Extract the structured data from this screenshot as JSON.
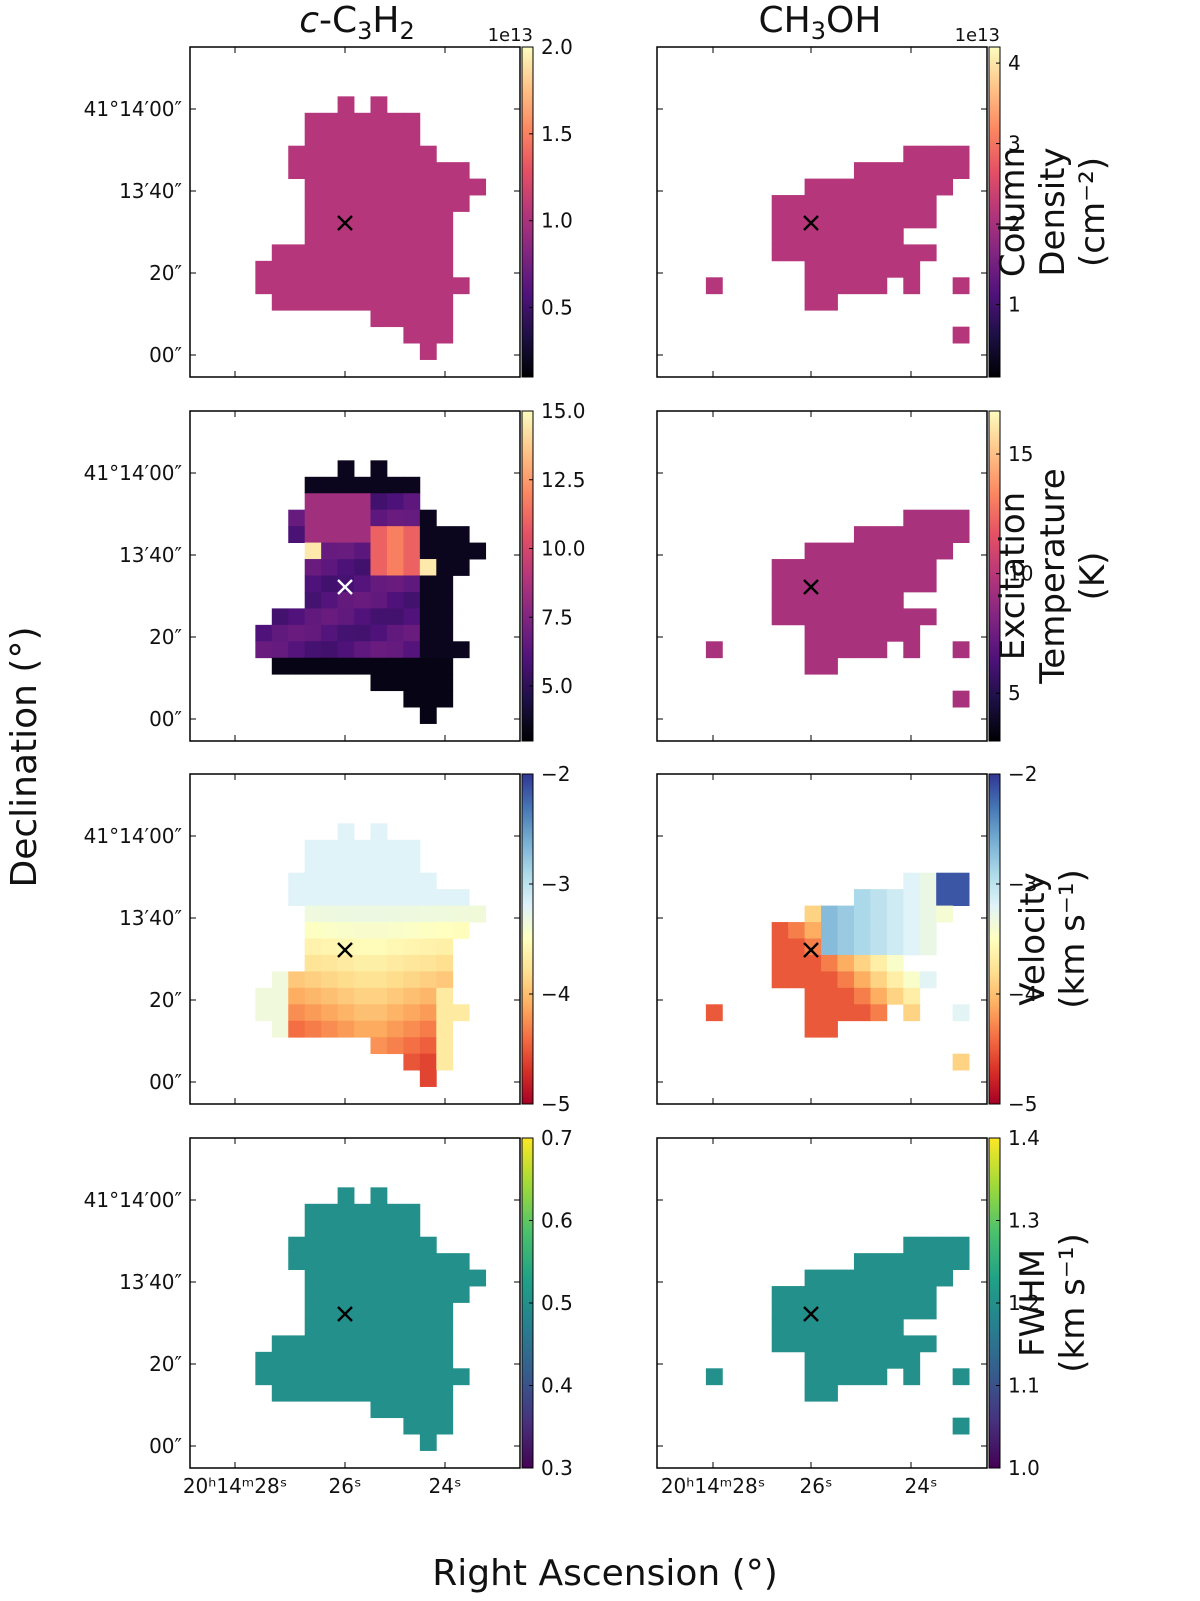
{
  "chart_data": {
    "type": "heatmap",
    "axes": {
      "xlabel": "Right Ascension (°)",
      "ylabel": "Declination (°)",
      "x_ticks": [
        {
          "label": "20ʰ14ᵐ28ˢ"
        },
        {
          "label": "26ˢ"
        },
        {
          "label": "24ˢ"
        }
      ],
      "y_ticks": [
        {
          "label": "41°14′00″"
        },
        {
          "label": "13′40″"
        },
        {
          "label": "20″"
        },
        {
          "label": "00″"
        }
      ]
    },
    "columns": [
      {
        "molecule": "c-C3H2",
        "title_parts": {
          "c": "c",
          "base": "-C",
          "n": "3",
          "h": "H",
          "h_sub": "2"
        }
      },
      {
        "molecule": "CH3OH",
        "title_parts": {
          "c": "",
          "base": "CH",
          "n": "3",
          "h": "OH",
          "h_sub": ""
        }
      }
    ],
    "rows": [
      {
        "quantity": "Column Density",
        "colorbar_label_lines": [
          "Column",
          "Density",
          "(cm⁻²)"
        ],
        "colormap": "magma",
        "panels": [
          {
            "cbar_exponent": "1e13",
            "vmin": 0.1,
            "vmax": 2.0,
            "cbar_ticks": [
              "2.0",
              "1.5",
              "1.0",
              "0.5"
            ],
            "cbar_tick_values": [
              2.0,
              1.5,
              1.0,
              0.5
            ],
            "value_note": "uniform fill near 1.05e13"
          },
          {
            "cbar_exponent": "1e13",
            "vmin": 0.1,
            "vmax": 4.2,
            "cbar_ticks": [
              "4",
              "3",
              "2",
              "1"
            ],
            "cbar_tick_values": [
              4,
              3,
              2,
              1
            ],
            "value_note": "uniform fill near 2.15e13"
          }
        ]
      },
      {
        "quantity": "Excitation Temperature",
        "colorbar_label_lines": [
          "Excitation",
          "Temperature",
          "(K)"
        ],
        "colormap": "magma",
        "panels": [
          {
            "cbar_exponent": "",
            "vmin": 3.0,
            "vmax": 15.0,
            "cbar_ticks": [
              "15.0",
              "12.5",
              "10.0",
              "7.5",
              "5.0"
            ],
            "cbar_tick_values": [
              15.0,
              12.5,
              10.0,
              7.5,
              5.0
            ],
            "value_note": "3–15 K, warm 10–13 K knot north-east of centre"
          },
          {
            "cbar_exponent": "",
            "vmin": 3.0,
            "vmax": 16.8,
            "cbar_ticks": [
              "15",
              "10",
              "5"
            ],
            "cbar_tick_values": [
              15,
              10,
              5
            ],
            "value_note": "uniform fill near 9.5 K"
          }
        ]
      },
      {
        "quantity": "Velocity",
        "colorbar_label_lines": [
          "Velocity",
          "(km s⁻¹)"
        ],
        "colormap": "RdYlBu",
        "panels": [
          {
            "cbar_exponent": "",
            "vmin": -5.0,
            "vmax": -2.0,
            "cbar_ticks": [
              "−2",
              "−3",
              "−4",
              "−5"
            ],
            "cbar_tick_values": [
              -2,
              -3,
              -4,
              -5
            ],
            "value_note": "about -3.2 in the north, about -4.4 in the south"
          },
          {
            "cbar_exponent": "",
            "vmin": -5.0,
            "vmax": -2.0,
            "cbar_ticks": [
              "−2",
              "−3",
              "−4",
              "−5"
            ],
            "cbar_tick_values": [
              -2,
              -3,
              -4,
              -5
            ],
            "value_note": "about -2.4 to -2.9 in the north-east, about -4.2 in the south-west"
          }
        ]
      },
      {
        "quantity": "FWHM",
        "colorbar_label_lines": [
          "FWHM",
          "(km s⁻¹)"
        ],
        "colormap": "viridis",
        "panels": [
          {
            "cbar_exponent": "",
            "vmin": 0.3,
            "vmax": 0.7,
            "cbar_ticks": [
              "0.7",
              "0.6",
              "0.5",
              "0.4",
              "0.3"
            ],
            "cbar_tick_values": [
              0.7,
              0.6,
              0.5,
              0.4,
              0.3
            ],
            "value_note": "uniform fill near 0.5"
          },
          {
            "cbar_exponent": "",
            "vmin": 1.0,
            "vmax": 1.4,
            "cbar_ticks": [
              "1.4",
              "1.3",
              "1.2",
              "1.1",
              "1.0"
            ],
            "cbar_tick_values": [
              1.4,
              1.3,
              1.2,
              1.1,
              1.0
            ],
            "value_note": "uniform fill near 1.2"
          }
        ]
      }
    ],
    "grid": {
      "n_cols": 20,
      "n_rows": 20
    },
    "masks": {
      "c-C3H2": [
        "....................",
        "....................",
        "....................",
        "........#.#.........",
        "......#######.......",
        "......#######.......",
        ".....#########......",
        ".....###########....",
        "......###########...",
        "......##########....",
        "......#########.....",
        "......#########.....",
        "....###########.....",
        "...############.....",
        "...#############....",
        "....###########.....",
        "..........#####.....",
        "............###.....",
        ".............#......",
        "...................."
      ],
      "CH3OH": [
        "....................",
        "....................",
        "....................",
        "....................",
        "....................",
        "....................",
        "..............####..",
        "...........#######..",
        "........#########...",
        "......##########....",
        "......##########....",
        "......########......",
        "......##########....",
        "........#######.....",
        "..#.....#####.#..#..",
        "........##..........",
        "....................",
        ".................#..",
        "....................",
        "...................."
      ]
    },
    "peak_marker": {
      "symbol": "x",
      "note": "reference position near 20h14m26s, 41°13′33″"
    }
  },
  "colors": {
    "magma": [
      "#000004",
      "#1c1044",
      "#4f127b",
      "#812581",
      "#b5367a",
      "#e55064",
      "#fb8761",
      "#fec287",
      "#fcfdbf"
    ],
    "viridis": [
      "#440154",
      "#46327e",
      "#365c8d",
      "#277f8e",
      "#1fa187",
      "#4ac16d",
      "#a0da39",
      "#fde725"
    ],
    "rdylbu": [
      "#313695",
      "#4575b4",
      "#74add1",
      "#abd9e9",
      "#e0f3f8",
      "#ffffbf",
      "#fee090",
      "#fdae61",
      "#f46d43",
      "#d73027",
      "#a50026"
    ]
  }
}
